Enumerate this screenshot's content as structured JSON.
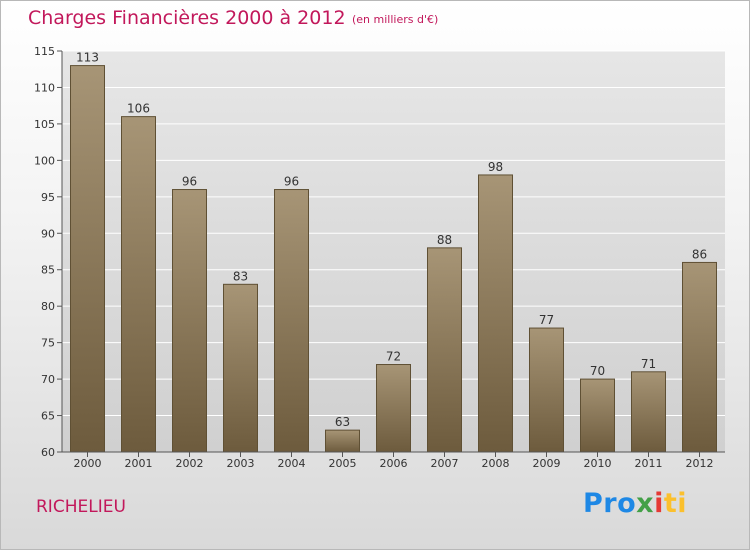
{
  "title": "Charges Financières 2000 à 2012",
  "subtitle": "(en milliers d'€)",
  "place": "RICHELIEU",
  "logo": {
    "text": "Proxiti",
    "parts": [
      "Pro",
      "x",
      "i",
      "ti"
    ]
  },
  "colors": {
    "title": "#c2185b",
    "bar_top": "#a79576",
    "bar_bottom": "#6d5b3d",
    "bar_border": "#5f5034"
  },
  "chart_data": {
    "type": "bar",
    "categories": [
      "2000",
      "2001",
      "2002",
      "2003",
      "2004",
      "2005",
      "2006",
      "2007",
      "2008",
      "2009",
      "2010",
      "2011",
      "2012"
    ],
    "values": [
      113,
      106,
      96,
      83,
      96,
      63,
      72,
      88,
      98,
      77,
      70,
      71,
      86
    ],
    "ylim": [
      60,
      115
    ],
    "yticks": [
      60,
      65,
      70,
      75,
      80,
      85,
      90,
      95,
      100,
      105,
      110,
      115
    ],
    "grid": true
  }
}
